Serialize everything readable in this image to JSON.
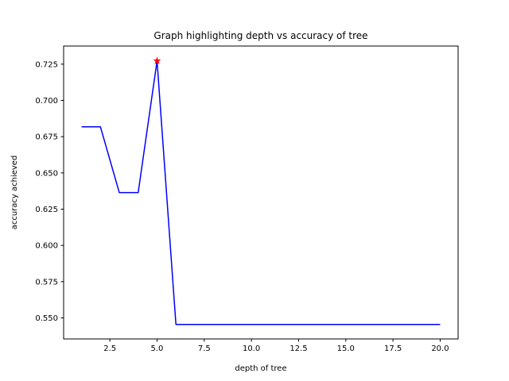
{
  "chart_data": {
    "type": "line",
    "title": "Graph highlighting depth vs accuracy of tree",
    "xlabel": "depth of tree",
    "ylabel": "accuracy achieved",
    "xlim": [
      0.05,
      20.95
    ],
    "ylim": [
      0.5355,
      0.7375
    ],
    "grid": false,
    "x_ticks": [
      "2.5",
      "5.0",
      "7.5",
      "10.0",
      "12.5",
      "15.0",
      "17.5",
      "20.0"
    ],
    "y_ticks": [
      "0.550",
      "0.575",
      "0.600",
      "0.625",
      "0.650",
      "0.675",
      "0.700",
      "0.725"
    ],
    "series": [
      {
        "color": "#0000ff",
        "marker": "none",
        "x": [
          1,
          2,
          3,
          4,
          5,
          6,
          7,
          8,
          9,
          10,
          11,
          12,
          13,
          14,
          15,
          16,
          17,
          18,
          19,
          20
        ],
        "y": [
          0.6818,
          0.6818,
          0.6364,
          0.6364,
          0.7273,
          0.5455,
          0.5455,
          0.5455,
          0.5455,
          0.5455,
          0.5455,
          0.5455,
          0.5455,
          0.5455,
          0.5455,
          0.5455,
          0.5455,
          0.5455,
          0.5455,
          0.5455
        ]
      }
    ],
    "highlight": {
      "color": "#ff0000",
      "marker": "star",
      "x": 5,
      "y": 0.7273
    }
  }
}
